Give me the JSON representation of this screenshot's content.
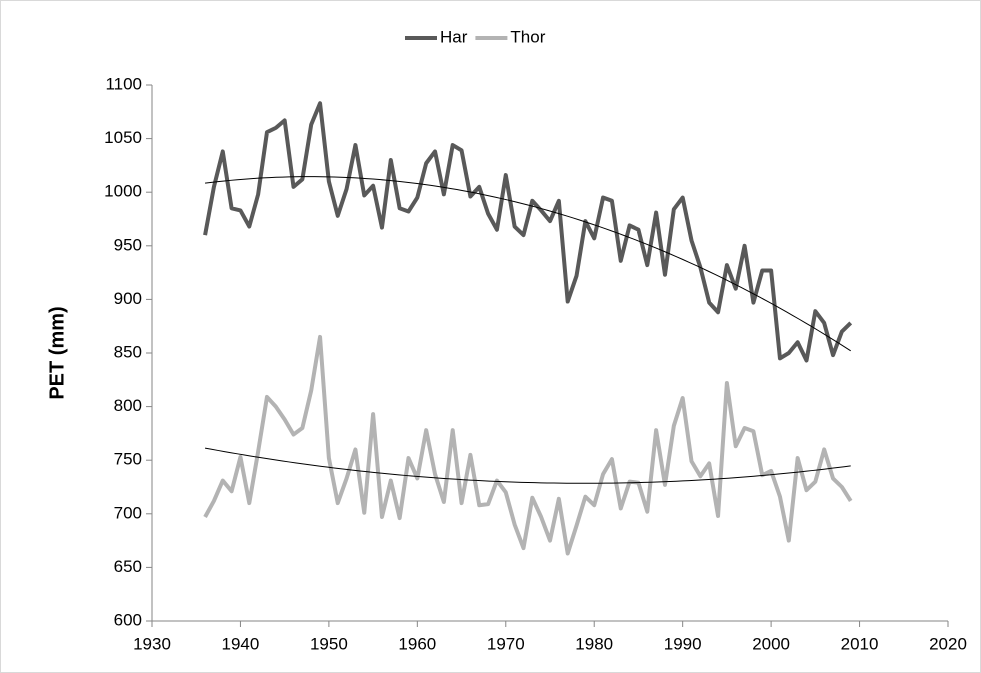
{
  "chart_data": {
    "type": "line",
    "y_label": "PET (mm)",
    "x": [
      1936,
      1937,
      1938,
      1939,
      1940,
      1941,
      1942,
      1943,
      1944,
      1945,
      1946,
      1947,
      1948,
      1949,
      1950,
      1951,
      1952,
      1953,
      1954,
      1955,
      1956,
      1957,
      1958,
      1959,
      1960,
      1961,
      1962,
      1963,
      1964,
      1965,
      1966,
      1967,
      1968,
      1969,
      1970,
      1971,
      1972,
      1973,
      1974,
      1975,
      1976,
      1977,
      1978,
      1979,
      1980,
      1981,
      1982,
      1983,
      1984,
      1985,
      1986,
      1987,
      1988,
      1989,
      1990,
      1991,
      1992,
      1993,
      1994,
      1995,
      1996,
      1997,
      1998,
      1999,
      2000,
      2001,
      2002,
      2003,
      2004,
      2005,
      2006,
      2007,
      2008,
      2009
    ],
    "series": [
      {
        "name": "Har",
        "color": "#595959",
        "values": [
          960,
          1005,
          1038,
          985,
          983,
          968,
          998,
          1056,
          1060,
          1067,
          1005,
          1012,
          1063,
          1083,
          1010,
          978,
          1003,
          1044,
          997,
          1006,
          967,
          1030,
          985,
          982,
          995,
          1027,
          1038,
          998,
          1044,
          1039,
          996,
          1005,
          980,
          965,
          1016,
          968,
          960,
          992,
          983,
          973,
          992,
          898,
          922,
          973,
          957,
          995,
          992,
          936,
          969,
          965,
          932,
          981,
          923,
          984,
          995,
          955,
          930,
          897,
          888,
          932,
          910,
          950,
          897,
          927,
          927,
          845,
          850,
          860,
          843,
          889,
          878,
          848,
          870,
          878
        ]
      },
      {
        "name": "Thor",
        "color": "#b3b3b3",
        "values": [
          697,
          712,
          731,
          721,
          753,
          710,
          758,
          809,
          800,
          788,
          774,
          780,
          815,
          865,
          752,
          710,
          733,
          760,
          701,
          793,
          697,
          731,
          696,
          752,
          733,
          778,
          737,
          711,
          778,
          710,
          755,
          708,
          709,
          731,
          720,
          690,
          668,
          715,
          697,
          675,
          714,
          663,
          689,
          716,
          708,
          737,
          751,
          705,
          730,
          729,
          702,
          778,
          727,
          782,
          808,
          749,
          735,
          747,
          698,
          822,
          763,
          780,
          777,
          736,
          740,
          716,
          675,
          752,
          722,
          730,
          760,
          733,
          725,
          712
        ]
      }
    ],
    "trendline": {
      "order": 2,
      "color": "#000000"
    },
    "xlim": [
      1930,
      2020
    ],
    "xticks": [
      1930,
      1940,
      1950,
      1960,
      1970,
      1980,
      1990,
      2000,
      2010,
      2020
    ],
    "ylim": [
      600,
      1100
    ],
    "yticks": [
      600,
      650,
      700,
      750,
      800,
      850,
      900,
      950,
      1000,
      1050,
      1100
    ],
    "legend": "top"
  }
}
